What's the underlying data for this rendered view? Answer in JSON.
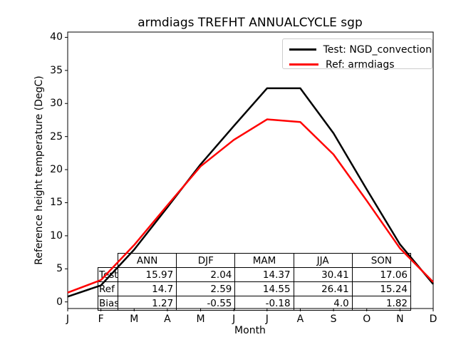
{
  "title": "armdiags TREFHT ANNUALCYCLE sgp",
  "axes": {
    "ylabel": "Reference height temperature (DegC)",
    "xlabel": "Month",
    "yticks": [
      0,
      5,
      10,
      15,
      20,
      25,
      30,
      35,
      40
    ],
    "xticklabels": [
      "J",
      "F",
      "M",
      "A",
      "M",
      "J",
      "J",
      "A",
      "S",
      "O",
      "N",
      "D"
    ]
  },
  "legend": {
    "entries": [
      {
        "label": "Test: NGD_convection",
        "color": "#000000"
      },
      {
        "label": "Ref: armdiags",
        "color": "#ff0000"
      }
    ]
  },
  "table": {
    "columns": [
      "ANN",
      "DJF",
      "MAM",
      "JJA",
      "SON"
    ],
    "rows": [
      {
        "label": "Test",
        "values": [
          "15.97",
          "2.04",
          "14.37",
          "30.41",
          "17.06"
        ]
      },
      {
        "label": "Ref",
        "values": [
          "14.7",
          "2.59",
          "14.55",
          "26.41",
          "15.24"
        ]
      },
      {
        "label": "Bias",
        "values": [
          "1.27",
          "-0.55",
          "-0.18",
          "4.0",
          "1.82"
        ]
      }
    ]
  },
  "chart_data": {
    "type": "line",
    "title": "armdiags TREFHT ANNUALCYCLE sgp",
    "xlabel": "Month",
    "ylabel": "Reference height temperature (DegC)",
    "x": [
      "Jan",
      "Feb",
      "Mar",
      "Apr",
      "May",
      "Jun",
      "Jul",
      "Aug",
      "Sep",
      "Oct",
      "Nov",
      "Dec"
    ],
    "series": [
      {
        "name": "Test: NGD_convection",
        "color": "#000000",
        "values": [
          0.8,
          2.5,
          7.9,
          14.3,
          20.8,
          26.6,
          32.3,
          32.3,
          25.5,
          17.0,
          8.7,
          2.7
        ]
      },
      {
        "name": "Ref: armdiags",
        "color": "#ff0000",
        "values": [
          1.4,
          3.3,
          8.6,
          14.6,
          20.5,
          24.5,
          27.6,
          27.2,
          22.3,
          15.3,
          8.1,
          3.0
        ]
      }
    ],
    "ylim": [
      -1,
      40.8
    ],
    "yticks": [
      0,
      5,
      10,
      15,
      20,
      25,
      30,
      35,
      40
    ],
    "grid": false,
    "legend_position": "upper right",
    "seasonal_means": {
      "columns": [
        "ANN",
        "DJF",
        "MAM",
        "JJA",
        "SON"
      ],
      "Test": [
        15.97,
        2.04,
        14.37,
        30.41,
        17.06
      ],
      "Ref": [
        14.7,
        2.59,
        14.55,
        26.41,
        15.24
      ],
      "Bias": [
        1.27,
        -0.55,
        -0.18,
        4.0,
        1.82
      ]
    }
  }
}
